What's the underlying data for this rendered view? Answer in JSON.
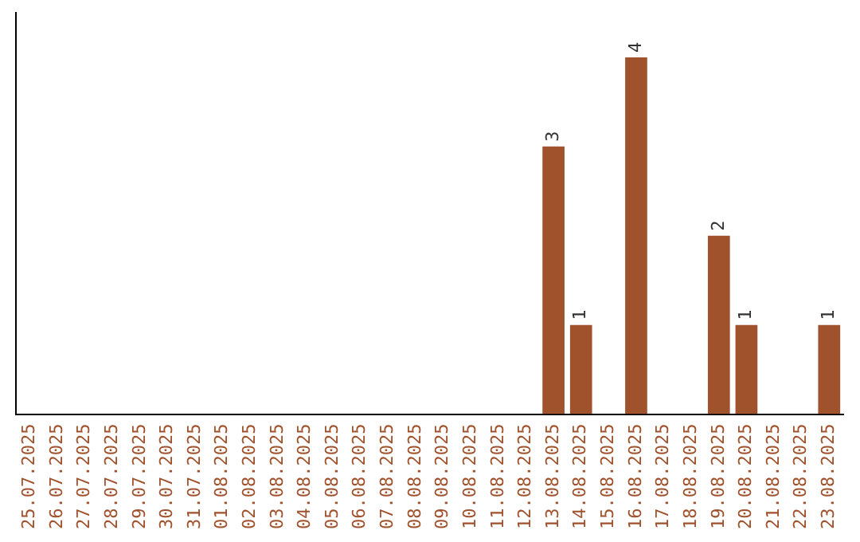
{
  "chart_data": {
    "type": "bar",
    "categories": [
      "25.07.2025",
      "26.07.2025",
      "27.07.2025",
      "28.07.2025",
      "29.07.2025",
      "30.07.2025",
      "31.07.2025",
      "01.08.2025",
      "02.08.2025",
      "03.08.2025",
      "04.08.2025",
      "05.08.2025",
      "06.08.2025",
      "07.08.2025",
      "08.08.2025",
      "09.08.2025",
      "10.08.2025",
      "11.08.2025",
      "12.08.2025",
      "13.08.2025",
      "14.08.2025",
      "15.08.2025",
      "16.08.2025",
      "17.08.2025",
      "18.08.2025",
      "19.08.2025",
      "20.08.2025",
      "21.08.2025",
      "22.08.2025",
      "23.08.2025"
    ],
    "values": [
      null,
      null,
      null,
      null,
      null,
      null,
      null,
      null,
      null,
      null,
      null,
      null,
      null,
      null,
      null,
      null,
      null,
      null,
      null,
      3,
      1,
      null,
      4,
      null,
      null,
      2,
      1,
      null,
      null,
      1
    ],
    "color": "#a0522d",
    "data_labels": true,
    "tick_labels": "x",
    "grid": false,
    "legend": false
  }
}
